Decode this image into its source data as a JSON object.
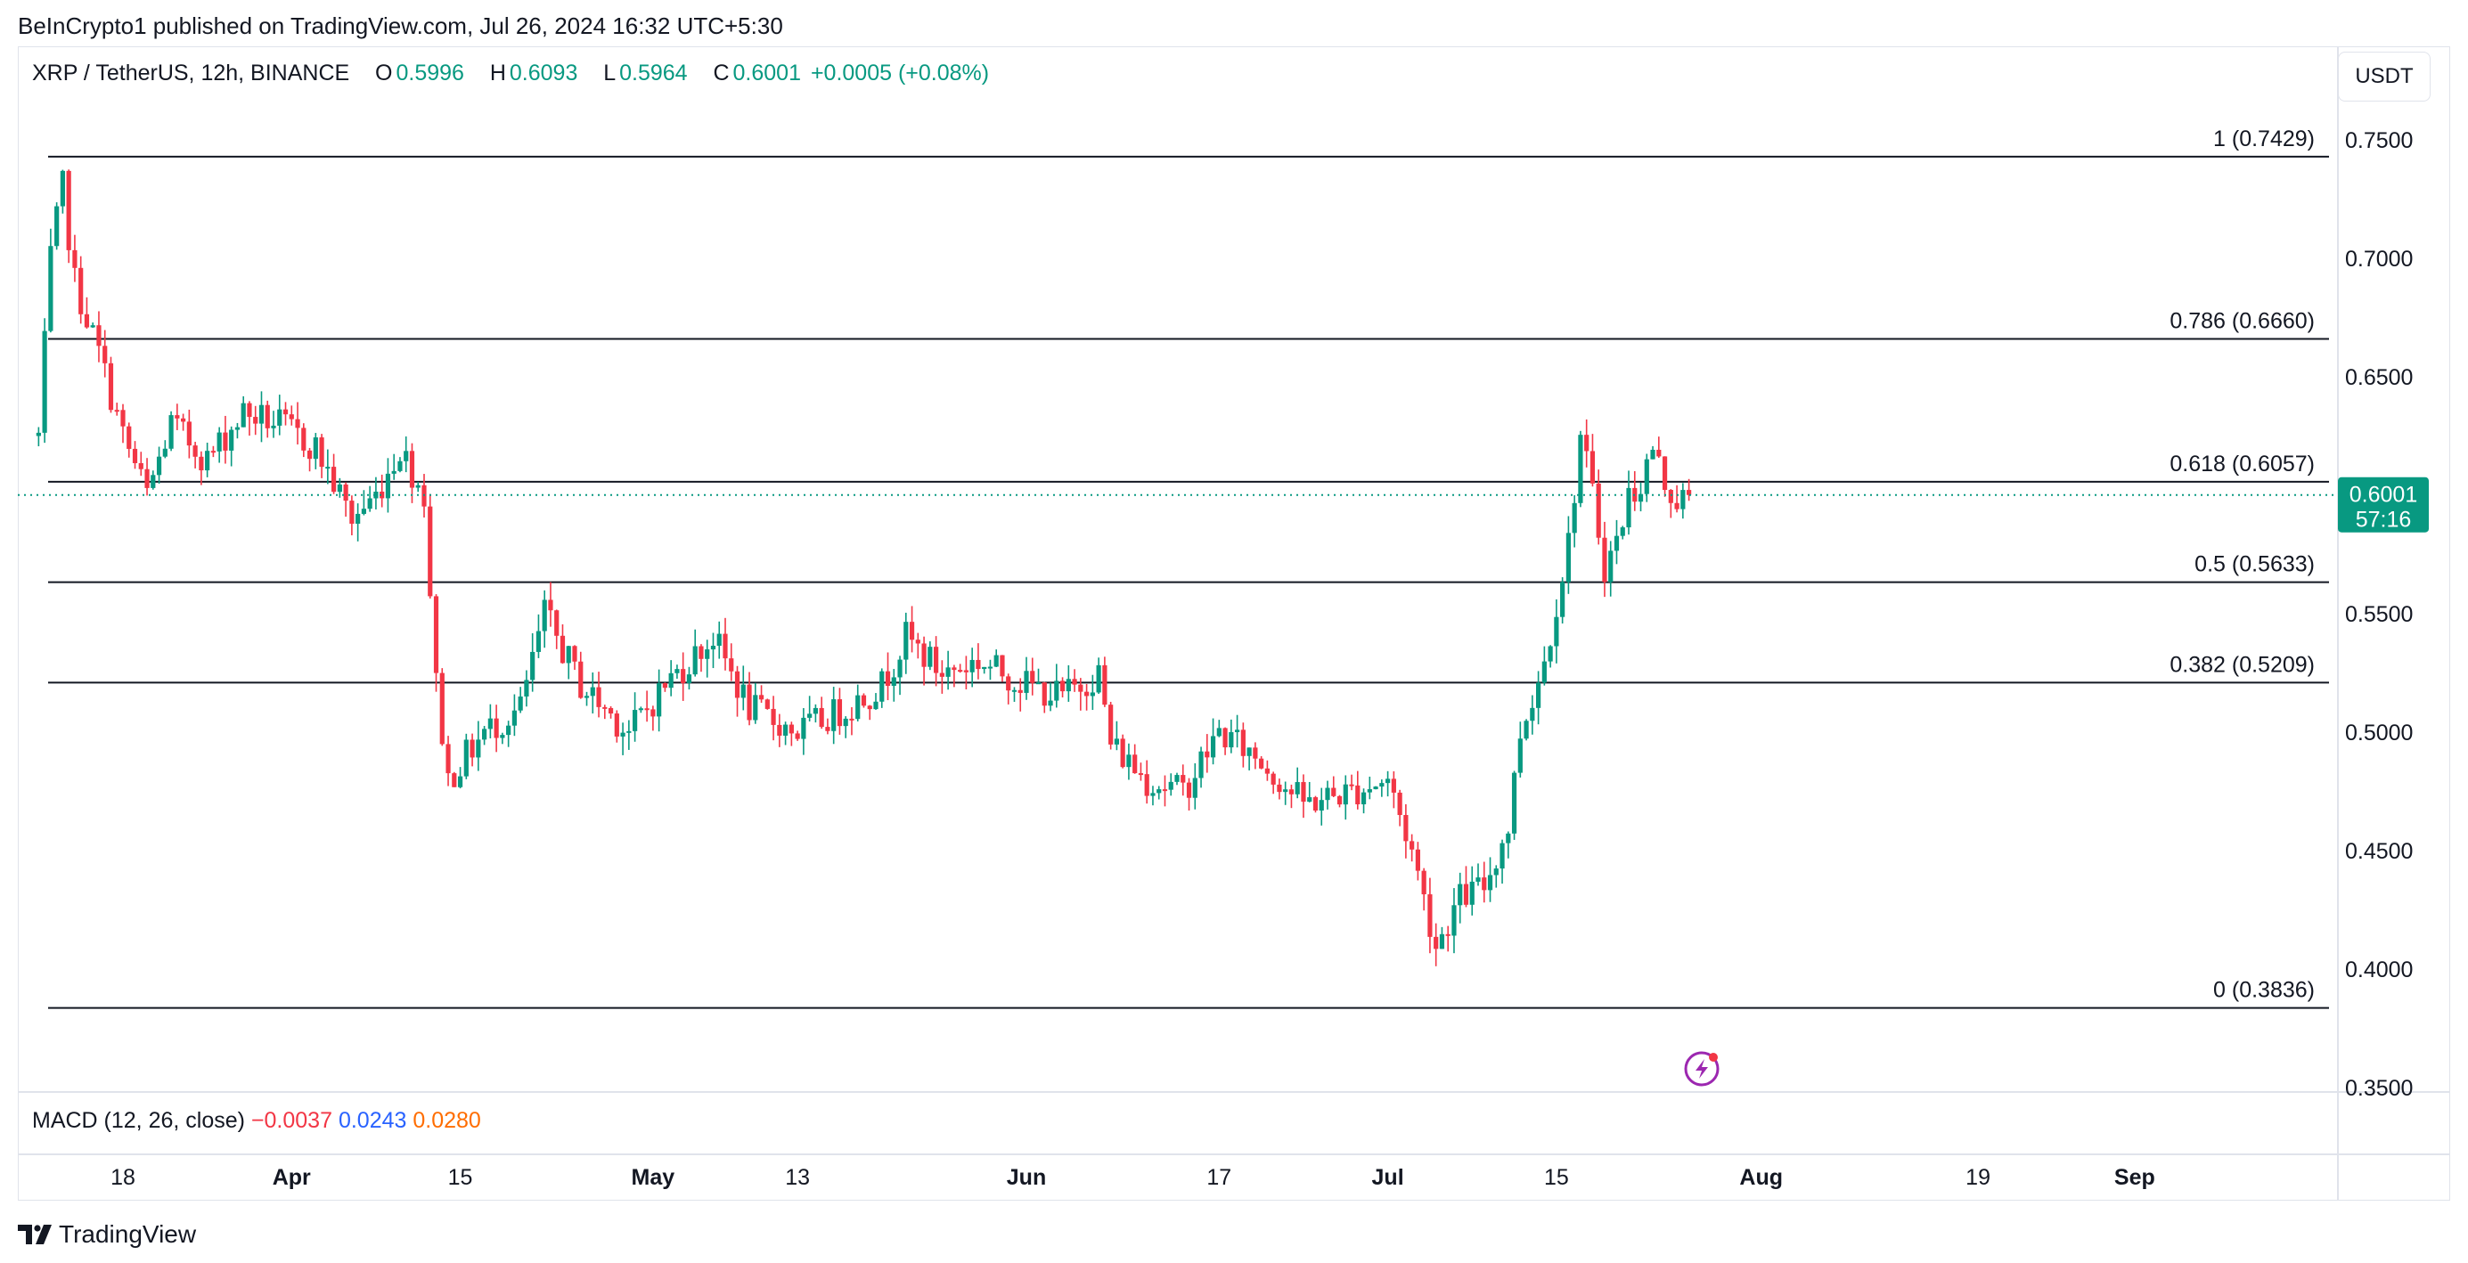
{
  "header": {
    "publisher_text": "BeInCrypto1 published on TradingView.com, Jul 26, 2024 16:32 UTC+5:30"
  },
  "legend": {
    "symbol_text": "XRP / TetherUS, 12h, BINANCE",
    "o_label": "O",
    "o_value": "0.5996",
    "h_label": "H",
    "h_value": "0.6093",
    "l_label": "L",
    "l_value": "0.5964",
    "c_label": "C",
    "c_value": "0.6001",
    "change": "+0.0005 (+0.08%)"
  },
  "currency_button": "USDT",
  "price_badge": {
    "price": "0.6001",
    "countdown": "57:16"
  },
  "macd": {
    "label": "MACD (12, 26, close)",
    "v1": "−0.0037",
    "v2": "0.0243",
    "v3": "0.0280"
  },
  "brand": {
    "name": "TradingView",
    "icon": "tradingview-logo"
  },
  "colors": {
    "up": "#089981",
    "down": "#f23645",
    "badge": "#089981",
    "macd_red": "#f23645",
    "macd_blue": "#2962ff",
    "macd_orange": "#ff6d00",
    "lightning": "#9c27b0"
  },
  "chart_data": {
    "type": "candlestick",
    "timeframe": "12h",
    "y_axis_ticks": [
      "0.7500",
      "0.7000",
      "0.6500",
      "0.5500",
      "0.5000",
      "0.4500",
      "0.4000",
      "0.3500"
    ],
    "ylim": [
      0.35,
      0.76
    ],
    "x_axis_ticks": [
      {
        "label": "18",
        "date": "2024-03-18",
        "bold": false
      },
      {
        "label": "Apr",
        "date": "2024-04-01",
        "bold": true
      },
      {
        "label": "15",
        "date": "2024-04-15",
        "bold": false
      },
      {
        "label": "May",
        "date": "2024-05-01",
        "bold": true
      },
      {
        "label": "13",
        "date": "2024-05-13",
        "bold": false
      },
      {
        "label": "Jun",
        "date": "2024-06-01",
        "bold": true
      },
      {
        "label": "17",
        "date": "2024-06-17",
        "bold": false
      },
      {
        "label": "Jul",
        "date": "2024-07-01",
        "bold": true
      },
      {
        "label": "15",
        "date": "2024-07-15",
        "bold": false
      },
      {
        "label": "Aug",
        "date": "2024-08-01",
        "bold": true
      },
      {
        "label": "19",
        "date": "2024-08-19",
        "bold": false
      },
      {
        "label": "Sep",
        "date": "2024-09-01",
        "bold": true
      }
    ],
    "fib_levels": [
      {
        "label": "1 (0.7429)",
        "value": 0.7429
      },
      {
        "label": "0.786 (0.6660)",
        "value": 0.666
      },
      {
        "label": "0.618 (0.6057)",
        "value": 0.6057
      },
      {
        "label": "0.5 (0.5633)",
        "value": 0.5633
      },
      {
        "label": "0.382 (0.5209)",
        "value": 0.5209
      },
      {
        "label": "0 (0.3836)",
        "value": 0.3836
      }
    ],
    "current_price": 0.6001,
    "close_path": [
      {
        "date": "2024-03-11",
        "close": 0.625
      },
      {
        "date": "2024-03-12",
        "close": 0.7
      },
      {
        "date": "2024-03-13",
        "close": 0.73
      },
      {
        "date": "2024-03-14",
        "close": 0.69
      },
      {
        "date": "2024-03-16",
        "close": 0.66
      },
      {
        "date": "2024-03-18",
        "close": 0.625
      },
      {
        "date": "2024-03-20",
        "close": 0.6
      },
      {
        "date": "2024-03-22",
        "close": 0.63
      },
      {
        "date": "2024-03-25",
        "close": 0.615
      },
      {
        "date": "2024-03-28",
        "close": 0.635
      },
      {
        "date": "2024-03-31",
        "close": 0.63
      },
      {
        "date": "2024-04-03",
        "close": 0.62
      },
      {
        "date": "2024-04-06",
        "close": 0.59
      },
      {
        "date": "2024-04-08",
        "close": 0.6
      },
      {
        "date": "2024-04-10",
        "close": 0.62
      },
      {
        "date": "2024-04-12",
        "close": 0.6
      },
      {
        "date": "2024-04-13",
        "close": 0.52
      },
      {
        "date": "2024-04-14",
        "close": 0.48
      },
      {
        "date": "2024-04-17",
        "close": 0.5
      },
      {
        "date": "2024-04-20",
        "close": 0.51
      },
      {
        "date": "2024-04-22",
        "close": 0.55
      },
      {
        "date": "2024-04-25",
        "close": 0.52
      },
      {
        "date": "2024-04-29",
        "close": 0.5
      },
      {
        "date": "2024-05-02",
        "close": 0.52
      },
      {
        "date": "2024-05-06",
        "close": 0.54
      },
      {
        "date": "2024-05-09",
        "close": 0.51
      },
      {
        "date": "2024-05-13",
        "close": 0.5
      },
      {
        "date": "2024-05-17",
        "close": 0.51
      },
      {
        "date": "2024-05-20",
        "close": 0.52
      },
      {
        "date": "2024-05-22",
        "close": 0.54
      },
      {
        "date": "2024-05-25",
        "close": 0.525
      },
      {
        "date": "2024-05-28",
        "close": 0.53
      },
      {
        "date": "2024-06-01",
        "close": 0.52
      },
      {
        "date": "2024-06-04",
        "close": 0.515
      },
      {
        "date": "2024-06-07",
        "close": 0.525
      },
      {
        "date": "2024-06-08",
        "close": 0.495
      },
      {
        "date": "2024-06-11",
        "close": 0.48
      },
      {
        "date": "2024-06-14",
        "close": 0.475
      },
      {
        "date": "2024-06-17",
        "close": 0.5
      },
      {
        "date": "2024-06-20",
        "close": 0.49
      },
      {
        "date": "2024-06-24",
        "close": 0.47
      },
      {
        "date": "2024-06-28",
        "close": 0.475
      },
      {
        "date": "2024-07-01",
        "close": 0.48
      },
      {
        "date": "2024-07-03",
        "close": 0.45
      },
      {
        "date": "2024-07-05",
        "close": 0.41
      },
      {
        "date": "2024-07-07",
        "close": 0.43
      },
      {
        "date": "2024-07-09",
        "close": 0.435
      },
      {
        "date": "2024-07-11",
        "close": 0.46
      },
      {
        "date": "2024-07-12",
        "close": 0.5
      },
      {
        "date": "2024-07-14",
        "close": 0.53
      },
      {
        "date": "2024-07-16",
        "close": 0.58
      },
      {
        "date": "2024-07-17",
        "close": 0.625
      },
      {
        "date": "2024-07-18",
        "close": 0.6
      },
      {
        "date": "2024-07-19",
        "close": 0.57
      },
      {
        "date": "2024-07-20",
        "close": 0.58
      },
      {
        "date": "2024-07-21",
        "close": 0.6
      },
      {
        "date": "2024-07-22",
        "close": 0.605
      },
      {
        "date": "2024-07-23",
        "close": 0.62
      },
      {
        "date": "2024-07-24",
        "close": 0.605
      },
      {
        "date": "2024-07-25",
        "close": 0.598
      },
      {
        "date": "2024-07-26",
        "close": 0.6001
      }
    ]
  }
}
